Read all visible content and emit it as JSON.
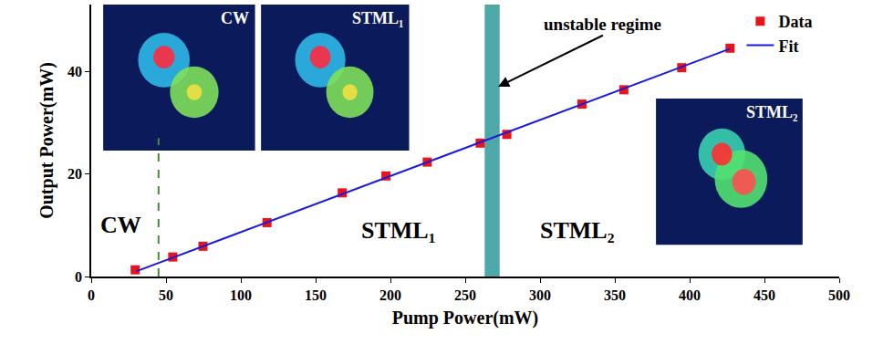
{
  "chart_data": {
    "type": "scatter",
    "x_label": "Pump Power(mW)",
    "y_label": "Output Power(mW)",
    "xlim": [
      0,
      500
    ],
    "xticks": [
      0,
      50,
      100,
      150,
      200,
      250,
      300,
      350,
      400,
      450,
      500
    ],
    "ylim": [
      0,
      53
    ],
    "yticks": [
      0,
      20,
      40
    ],
    "legend": "upper right",
    "grid": false,
    "series": [
      {
        "name": "Data",
        "type": "scatter",
        "marker": "square",
        "color": "#e8141c",
        "x": [
          29.4,
          54.5,
          74.7,
          117.5,
          167.8,
          197,
          224.6,
          260,
          277.8,
          328,
          356,
          394.7,
          427
        ],
        "values": [
          1.3,
          3.8,
          5.9,
          10.5,
          16.3,
          19.6,
          22.3,
          26,
          27.7,
          33.6,
          36.4,
          40.7,
          44.5
        ]
      },
      {
        "name": "Fit",
        "type": "line",
        "line_style": "solid",
        "color": "#1a1adb",
        "x": [
          30,
          427
        ],
        "values": [
          1.0,
          44.4
        ]
      }
    ],
    "unstable_regime": {
      "from": 263,
      "to": 273,
      "color": "#4fa8a8",
      "label": "unstable regime",
      "arrow_to": [
        272,
        37
      ],
      "label_at": [
        342,
        47
      ]
    },
    "cw_threshold": {
      "x": 45,
      "y_top": 27,
      "color": "#4a8a3a",
      "line_style": "dash"
    },
    "annotations": [
      {
        "text": "CW",
        "x": 20,
        "y": 10
      },
      {
        "text": "STML₁",
        "x": 205,
        "y": 9
      },
      {
        "text": "STML₂",
        "x": 325,
        "y": 9
      }
    ],
    "insets": [
      {
        "label": "CW"
      },
      {
        "label": "STML₁"
      },
      {
        "label": "STML₂"
      }
    ]
  }
}
